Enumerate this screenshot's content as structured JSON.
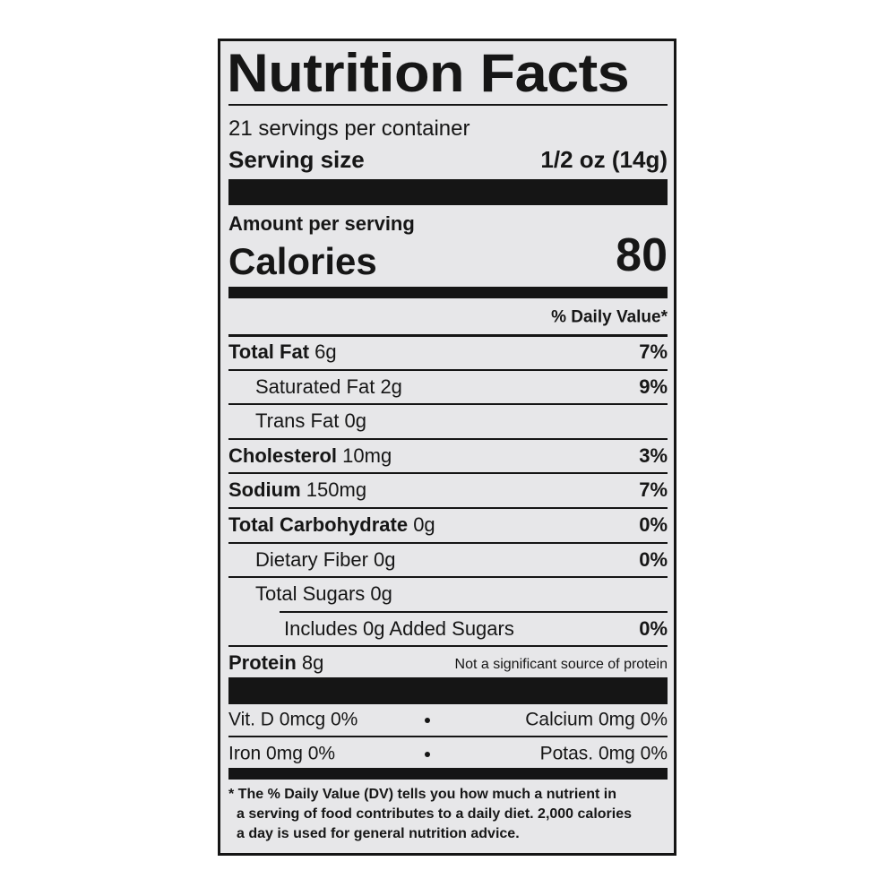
{
  "title": "Nutrition Facts",
  "servings": "21 servings per container",
  "serving_size": {
    "label": "Serving size",
    "value": "1/2 oz (14g)"
  },
  "amount_per_serving": "Amount per serving",
  "calories": {
    "label": "Calories",
    "value": 80
  },
  "dv_header": "% Daily Value*",
  "nutrients": [
    {
      "name": "Total Fat",
      "amount": "6g",
      "dv": "7%",
      "indent": 0
    },
    {
      "name": "Saturated Fat",
      "amount": "2g",
      "dv": "9%",
      "indent": 1
    },
    {
      "name": "Trans Fat",
      "amount": "0g",
      "indent": 1
    },
    {
      "name": "Cholesterol",
      "amount": "10mg",
      "dv": "3%",
      "indent": 0
    },
    {
      "name": "Sodium",
      "amount": "150mg",
      "dv": "7%",
      "indent": 0
    },
    {
      "name": "Total Carbohydrate",
      "amount": "0g",
      "dv": "0%",
      "indent": 0
    },
    {
      "name": "Dietary Fiber",
      "amount": "0g",
      "dv": "0%",
      "indent": 1
    },
    {
      "name": "Total Sugars",
      "amount": "0g",
      "indent": 1
    },
    {
      "name": "Includes 0g Added Sugars",
      "dv": "0%",
      "indent": 2
    },
    {
      "name": "Protein",
      "amount": "8g",
      "note": "Not a significant source of protein",
      "indent": 0
    }
  ],
  "vitamins": [
    [
      "Vit. D 0mcg 0%",
      "Calcium 0mg 0%"
    ],
    [
      "Iron 0mg 0%",
      "Potas. 0mg 0%"
    ]
  ],
  "footnote": [
    "* The % Daily Value (DV) tells you how much a nutrient in",
    "a serving of food contributes to a daily diet. 2,000 calories",
    "a day is used for general nutrition advice."
  ]
}
